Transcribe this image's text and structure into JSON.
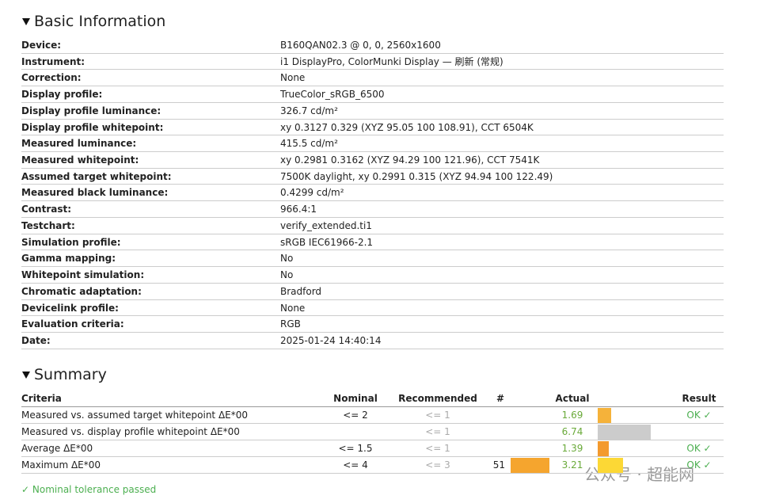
{
  "basic_information": {
    "title": "Basic Information",
    "rows": [
      [
        "Device:",
        "B160QAN02.3 @ 0, 0, 2560x1600"
      ],
      [
        "Instrument:",
        "i1 DisplayPro, ColorMunki Display — 刷新 (常规)"
      ],
      [
        "Correction:",
        "None"
      ],
      [
        "Display profile:",
        "TrueColor_sRGB_6500"
      ],
      [
        "Display profile luminance:",
        "326.7 cd/m²"
      ],
      [
        "Display profile whitepoint:",
        "xy 0.3127 0.329 (XYZ 95.05 100 108.91), CCT 6504K"
      ],
      [
        "Measured luminance:",
        "415.5 cd/m²"
      ],
      [
        "Measured whitepoint:",
        "xy 0.2981 0.3162 (XYZ 94.29 100 121.96), CCT 7541K"
      ],
      [
        "Assumed target whitepoint:",
        "7500K daylight, xy 0.2991 0.315 (XYZ 94.94 100 122.49)"
      ],
      [
        "Measured black luminance:",
        "0.4299 cd/m²"
      ],
      [
        "Contrast:",
        "966.4:1"
      ],
      [
        "Testchart:",
        "verify_extended.ti1"
      ],
      [
        "Simulation profile:",
        "sRGB IEC61966-2.1"
      ],
      [
        "Gamma mapping:",
        "No"
      ],
      [
        "Whitepoint simulation:",
        "No"
      ],
      [
        "Chromatic adaptation:",
        "Bradford"
      ],
      [
        "Devicelink profile:",
        "None"
      ],
      [
        "Evaluation criteria:",
        "RGB"
      ],
      [
        "Date:",
        "2025-01-24 14:40:14"
      ]
    ]
  },
  "summary": {
    "title": "Summary",
    "columns": {
      "criteria": "Criteria",
      "nominal": "Nominal",
      "recommended": "Recommended",
      "count": "#",
      "actual": "Actual",
      "result": "Result"
    },
    "rows": [
      {
        "criteria": "Measured vs. assumed target whitepoint ΔE*00",
        "nominal": "<= 2",
        "recommended": "<= 1",
        "actual": 1.69,
        "bar_color": "#f5b23a",
        "result": "OK ✓"
      },
      {
        "criteria": "Measured vs. display profile whitepoint ΔE*00",
        "recommended": "<= 1",
        "actual": 6.74,
        "bar_color": "#cccccc"
      },
      {
        "criteria": "Average ΔE*00",
        "nominal": "<= 1.5",
        "recommended": "<= 1",
        "actual": 1.39,
        "bar_color": "#f39a2e",
        "result": "OK ✓"
      },
      {
        "criteria": "Maximum ΔE*00",
        "nominal": "<= 4",
        "recommended": "<= 3",
        "count": 51,
        "count_bar_color": "#f5a52e",
        "actual": 3.21,
        "bar_color": "#fcd835",
        "result": "OK ✓"
      }
    ],
    "status": "✓ Nominal tolerance passed"
  },
  "watermark": "公众号 · 超能网"
}
